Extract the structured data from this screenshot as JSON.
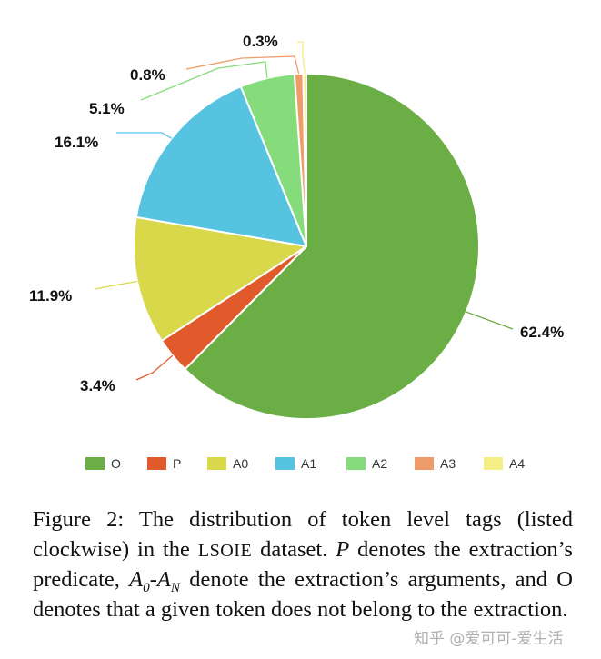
{
  "chart_data": {
    "type": "pie",
    "order": "clockwise",
    "start_angle_deg": 0,
    "slices": [
      {
        "name": "O",
        "value": 62.4,
        "label": "62.4%",
        "color": "#6aae45"
      },
      {
        "name": "P",
        "value": 3.4,
        "label": "3.4%",
        "color": "#e05a2b"
      },
      {
        "name": "A0",
        "value": 11.9,
        "label": "11.9%",
        "color": "#d9d84a"
      },
      {
        "name": "A1",
        "value": 16.1,
        "label": "16.1%",
        "color": "#56c3e1"
      },
      {
        "name": "A2",
        "value": 5.1,
        "label": "5.1%",
        "color": "#86db7a"
      },
      {
        "name": "A3",
        "value": 0.8,
        "label": "0.8%",
        "color": "#ef9c6a"
      },
      {
        "name": "A4",
        "value": 0.3,
        "label": "0.3%",
        "color": "#f5ee86"
      }
    ],
    "legend_position": "bottom"
  },
  "caption": {
    "part1": "Figure 2:",
    "part2": " The distribution of token level tags (listed clockwise) in the ",
    "dataset": "LSOIE",
    "part3": " dataset. ",
    "p": "P",
    "part4": " denotes the extraction’s predicate, ",
    "a": "A",
    "sub0": "0",
    "dash": "-",
    "a2": "A",
    "subN": "N",
    "part5": " denote the extraction’s arguments, and O denotes that a given token does not belong to the extraction."
  },
  "watermark": "知乎 @爱可可-爱生活"
}
